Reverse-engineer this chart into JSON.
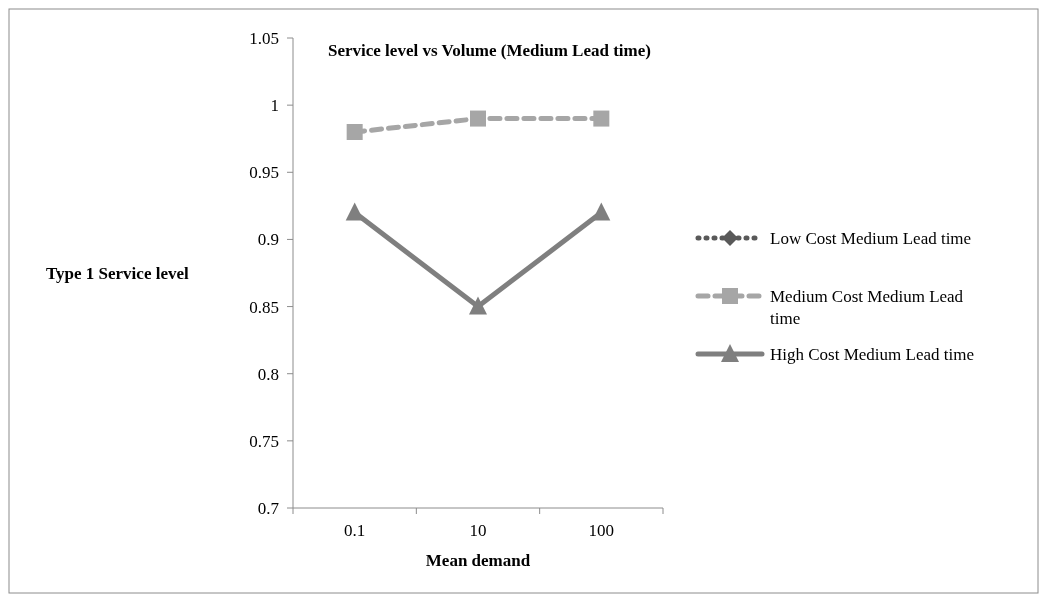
{
  "chart_data": {
    "type": "line",
    "title": "Service level vs Volume (Medium Lead time)",
    "xlabel": "Mean demand",
    "ylabel": "Type 1 Service level",
    "categories": [
      "0.1",
      "10",
      "100"
    ],
    "ylim": [
      0.7,
      1.05
    ],
    "yticks": [
      0.7,
      0.75,
      0.8,
      0.85,
      0.9,
      0.95,
      1,
      1.05
    ],
    "grid": false,
    "legend": "right",
    "series": [
      {
        "name": "Low Cost Medium Lead time",
        "color": "#595959",
        "values": [
          null,
          null,
          null
        ],
        "marker": "diamond",
        "line_style": "dotted"
      },
      {
        "name": "Medium Cost Medium Lead time",
        "color": "#a6a6a6",
        "values": [
          0.98,
          0.99,
          0.99
        ],
        "marker": "square",
        "line_style": "dashed"
      },
      {
        "name": "High Cost Medium Lead time",
        "color": "#7f7f7f",
        "values": [
          0.92,
          0.85,
          0.92
        ],
        "marker": "triangle",
        "line_style": "solid"
      }
    ]
  }
}
